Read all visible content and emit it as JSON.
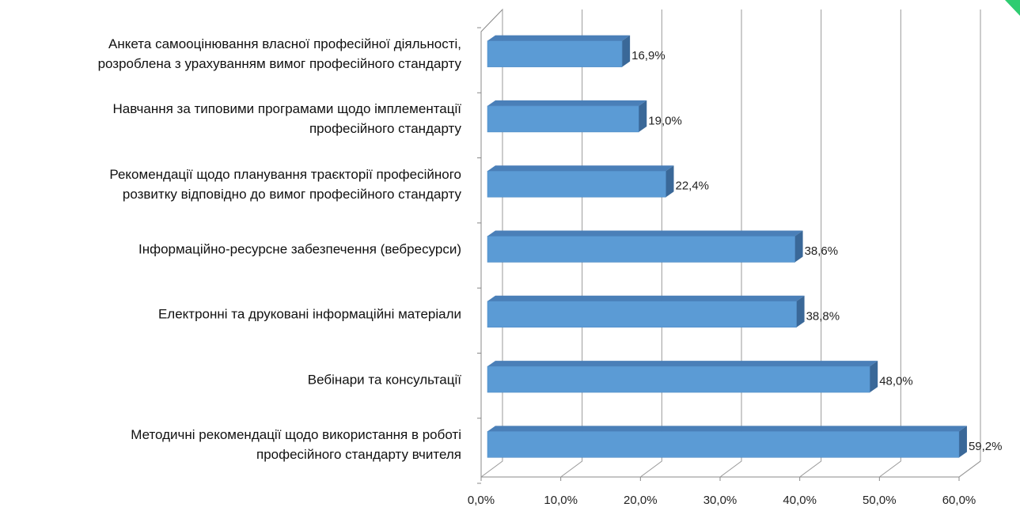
{
  "chart_data": {
    "type": "bar",
    "orientation": "horizontal",
    "categories": [
      "Анкета самооцінювання власної професійної діяльності,\nрозроблена з урахуванням вимог професійного стандарту",
      "Навчання за типовими програмами щодо імплементації\nпрофесійного стандарту",
      "Рекомендації щодо планування траєкторії професійного\nрозвитку відповідно до вимог професійного стандарту",
      "Інформаційно-ресурсне забезпечення (вебресурси)",
      "Електронні та друковані інформаційні матеріали",
      "Вебінари та консультації",
      "Методичні рекомендації щодо використання в роботі\nпрофесійного стандарту вчителя"
    ],
    "values": [
      16.9,
      19.0,
      22.4,
      38.6,
      38.8,
      48.0,
      59.2
    ],
    "value_labels": [
      "16,9%",
      "19,0%",
      "22,4%",
      "38,6%",
      "38,8%",
      "48,0%",
      "59,2%"
    ],
    "color": "#5b9bd5",
    "xlim": [
      0,
      60
    ],
    "xticks": [
      {
        "value": 0,
        "label": "0,0%"
      },
      {
        "value": 10,
        "label": "10,0%"
      },
      {
        "value": 20,
        "label": "20,0%"
      },
      {
        "value": 30,
        "label": "30,0%"
      },
      {
        "value": 40,
        "label": "40,0%"
      },
      {
        "value": 50,
        "label": "50,0%"
      },
      {
        "value": 60,
        "label": "60,0%"
      }
    ],
    "grid": true
  }
}
